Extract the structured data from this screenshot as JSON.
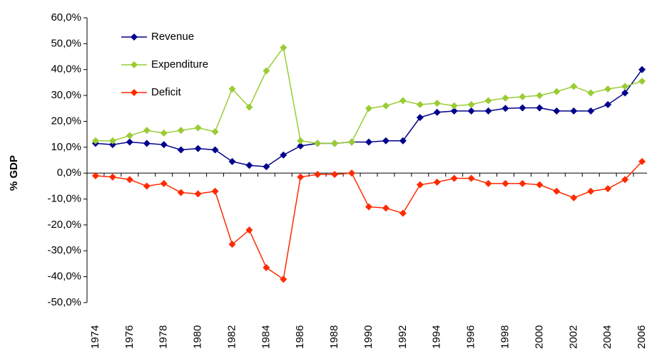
{
  "chart_data": {
    "type": "line",
    "y_label": "% GDP",
    "categories": [
      "1974",
      null,
      "1976",
      null,
      "1978",
      null,
      "1980",
      null,
      "1982",
      null,
      "1984",
      null,
      "1986",
      null,
      "1988",
      null,
      "1990",
      null,
      "1992",
      null,
      "1994",
      null,
      "1996",
      null,
      "1998",
      null,
      "2000",
      null,
      "2002",
      null,
      "2004",
      null,
      "2006"
    ],
    "series": [
      {
        "name": "Revenue",
        "color": "#00008b",
        "values": [
          11.5,
          11,
          12,
          11.5,
          11,
          9,
          9.5,
          9,
          4.5,
          3,
          2.5,
          7,
          10.5,
          11.5,
          11.5,
          12,
          12,
          12.5,
          12.5,
          21.5,
          23.5,
          24,
          24,
          24,
          25,
          25.2,
          25.2,
          24,
          24,
          24,
          26.5,
          31,
          40
        ]
      },
      {
        "name": "Expenditure",
        "color": "#99cc33",
        "values": [
          12.5,
          12.5,
          14.5,
          16.5,
          15.5,
          16.5,
          17.5,
          16,
          32.5,
          25.5,
          39.5,
          48.5,
          12.5,
          11.5,
          11.5,
          12,
          25,
          26,
          28,
          26.5,
          27,
          26,
          26.5,
          28,
          29,
          29.5,
          30,
          31.5,
          33.5,
          31,
          32.5,
          33.5,
          35.5
        ]
      },
      {
        "name": "Deficit",
        "color": "#ff2a00",
        "values": [
          -1,
          -1.5,
          -2.5,
          -5,
          -4,
          -7.5,
          -8,
          -7,
          -27.5,
          -22,
          -36.5,
          -41,
          -1.5,
          -0.5,
          -0.5,
          0,
          -13,
          -13.5,
          -15.5,
          -4.5,
          -3.5,
          -2,
          -2,
          -4,
          -4,
          -4,
          -4.5,
          -7,
          -9.5,
          -7,
          -6,
          -2.5,
          4.5
        ]
      }
    ],
    "ylim": [
      -50,
      60
    ],
    "yticks": [
      {
        "value": -50,
        "label": "-50,0%"
      },
      {
        "value": -40,
        "label": "-40,0%"
      },
      {
        "value": -30,
        "label": "-30,0%"
      },
      {
        "value": -20,
        "label": "-20,0%"
      },
      {
        "value": -10,
        "label": "-10,0%"
      },
      {
        "value": 0,
        "label": "0,0%"
      },
      {
        "value": 10,
        "label": "10,0%"
      },
      {
        "value": 20,
        "label": "20,0%"
      },
      {
        "value": 30,
        "label": "30,0%"
      },
      {
        "value": 40,
        "label": "40,0%"
      },
      {
        "value": 50,
        "label": "50,0%"
      },
      {
        "value": 60,
        "label": "60,0%"
      }
    ],
    "legend": "top-left"
  }
}
